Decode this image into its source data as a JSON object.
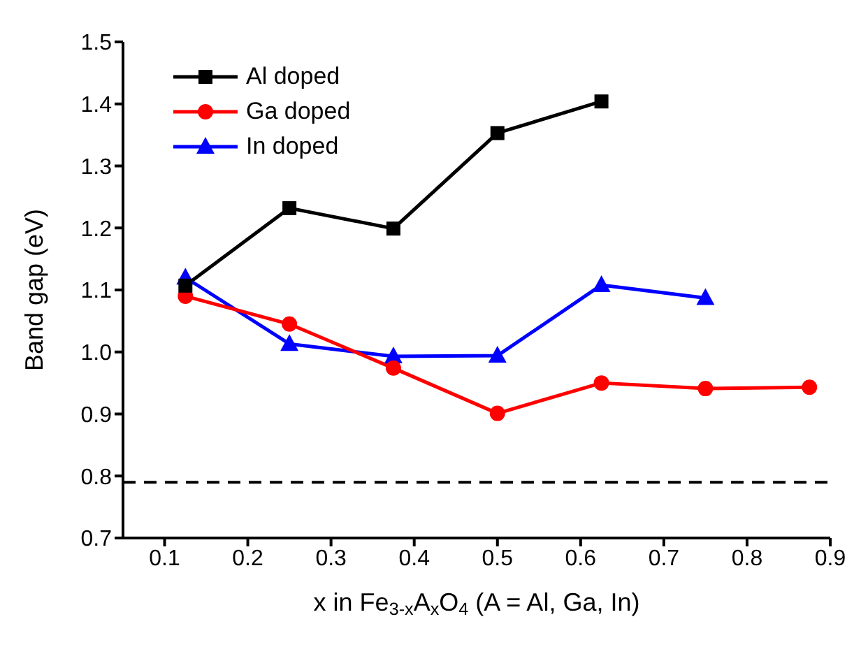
{
  "chart_data": {
    "type": "line",
    "xlabel": "x in Fe$_{3-x}$A$_{x}$O$_{4}$ (A = Al, Ga, In)",
    "ylabel": "Band gap (eV)",
    "x": [
      0.125,
      0.25,
      0.375,
      0.5,
      0.625,
      0.75,
      0.875
    ],
    "series": [
      {
        "name": "Al doped",
        "color": "#000000",
        "marker": "square",
        "x": [
          0.125,
          0.25,
          0.375,
          0.5,
          0.625
        ],
        "values": [
          1.107,
          1.232,
          1.199,
          1.353,
          1.404
        ]
      },
      {
        "name": "Ga doped",
        "color": "#ff0000",
        "marker": "circle",
        "values": [
          1.09,
          1.045,
          0.974,
          0.901,
          0.95,
          0.941,
          0.943
        ]
      },
      {
        "name": "In doped",
        "color": "#0000ff",
        "marker": "triangle",
        "x": [
          0.125,
          0.25,
          0.375,
          0.5,
          0.625,
          0.75
        ],
        "values": [
          1.12,
          1.013,
          0.993,
          0.994,
          1.108,
          1.087
        ]
      }
    ],
    "xlim": [
      0.05,
      0.9
    ],
    "xticks": [
      0.1,
      0.2,
      0.3,
      0.4,
      0.5,
      0.6,
      0.7,
      0.8,
      0.9
    ],
    "ylim": [
      0.7,
      1.5
    ],
    "yticks": [
      0.7,
      0.8,
      0.9,
      {
        "value": 1,
        "label": "1.0"
      },
      1.1,
      1.2,
      1.3,
      1.4,
      1.5
    ],
    "ref_lines": [
      {
        "axis": "y",
        "value": 0.79,
        "color": "#000000",
        "line_style": "dashed"
      }
    ],
    "grid": false,
    "legend": "top left",
    "line_style": "solid"
  }
}
